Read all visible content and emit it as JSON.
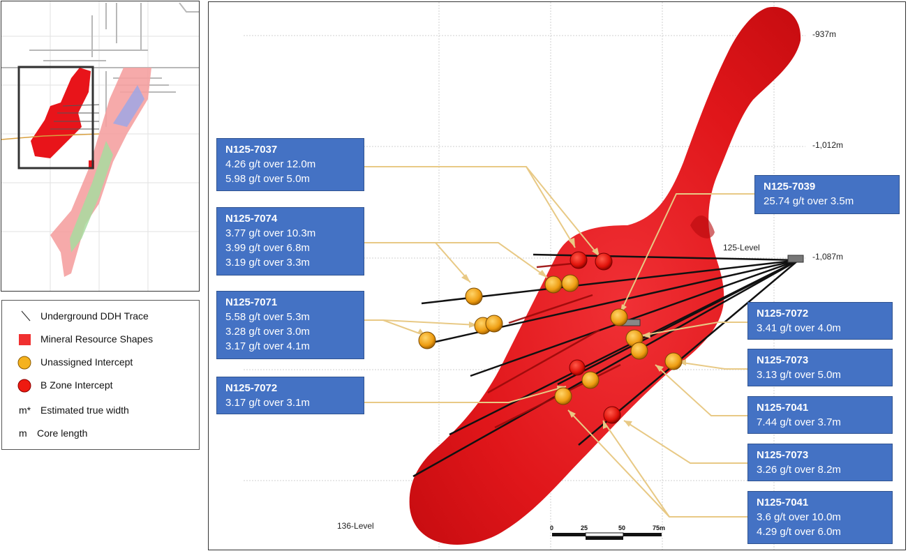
{
  "legend": {
    "items": [
      {
        "icon": "line-icon",
        "label": "Underground DDH Trace"
      },
      {
        "icon": "red-square-icon",
        "label": "Mineral Resource Shapes"
      },
      {
        "icon": "orange-circle-icon",
        "label": "Unassigned Intercept"
      },
      {
        "icon": "red-circle-icon",
        "label": "B Zone Intercept"
      },
      {
        "icon": "m-star-icon",
        "symbol": "m*",
        "label": "Estimated true width"
      },
      {
        "icon": "m-icon",
        "symbol": "m",
        "label": "Core length"
      }
    ]
  },
  "levels": [
    "-937m",
    "-1,012m",
    "-1,087m"
  ],
  "level_names": {
    "upper": "125-Level",
    "lower": "136-Level"
  },
  "scale_bar": {
    "ticks": [
      "0",
      "25",
      "50",
      "75m"
    ]
  },
  "colors": {
    "resource": "#e0161a",
    "callout": "#4472c4",
    "unassigned": "#f0a418",
    "bzone": "#e8120c",
    "leader": "#e8c985"
  },
  "callouts": [
    {
      "hole": "N125-7037",
      "lines": [
        "4.26 g/t over 12.0m",
        "5.98 g/t over 5.0m"
      ]
    },
    {
      "hole": "N125-7074",
      "lines": [
        "3.77 g/t over 10.3m",
        "3.99 g/t over 6.8m",
        "3.19 g/t over 3.3m"
      ]
    },
    {
      "hole": "N125-7071",
      "lines": [
        "5.58 g/t over 5.3m",
        "3.28 g/t over 3.0m",
        "3.17 g/t over 4.1m"
      ]
    },
    {
      "hole": "N125-7072",
      "lines": [
        "3.17 g/t over 3.1m"
      ]
    },
    {
      "hole": "N125-7039",
      "lines": [
        "25.74 g/t over 3.5m"
      ]
    },
    {
      "hole": "N125-7072",
      "lines": [
        "3.41 g/t over 4.0m"
      ]
    },
    {
      "hole": "N125-7073",
      "lines": [
        "3.13 g/t over 5.0m"
      ]
    },
    {
      "hole": "N125-7041",
      "lines": [
        "7.44 g/t over 3.7m"
      ]
    },
    {
      "hole": "N125-7073",
      "lines": [
        "3.26 g/t over 8.2m"
      ]
    },
    {
      "hole": "N125-7041",
      "lines": [
        "3.6 g/t over 10.0m",
        "4.29 g/t over 6.0m"
      ]
    }
  ]
}
